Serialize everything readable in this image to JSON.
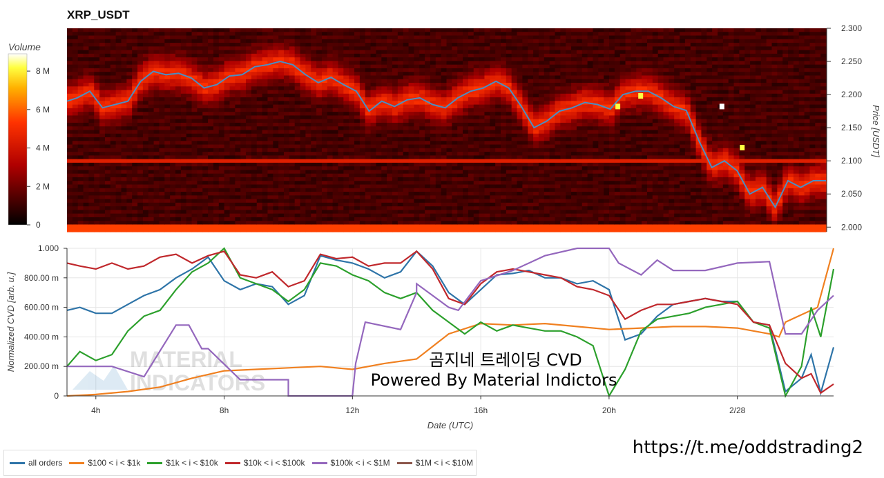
{
  "chart_data": [
    {
      "type": "heatmap",
      "title": "XRP_USDT",
      "ylabel": "Price [USDT]",
      "ylim": [
        1.993,
        2.3
      ],
      "yticks": [
        "2.300",
        "2.250",
        "2.200",
        "2.150",
        "2.100",
        "2.050",
        "2.000"
      ],
      "ytick_values": [
        2.3,
        2.25,
        2.2,
        2.15,
        2.1,
        2.05,
        2.0
      ],
      "colorbar": {
        "title": "Volume",
        "ticks": [
          "8 M",
          "6 M",
          "4 M",
          "2 M",
          "0"
        ],
        "tick_values": [
          8,
          6,
          4,
          2,
          0
        ],
        "range": [
          0,
          8.9
        ]
      },
      "x_range_hours": [
        3.1,
        33
      ],
      "price_series": {
        "name": "price",
        "color": "#4a8ec4",
        "x": [
          3.1,
          3.5,
          4.0,
          4.5,
          5.0,
          5.5,
          6.0,
          6.5,
          7.0,
          7.5,
          8.0,
          8.5,
          9.0,
          9.5,
          10.0,
          10.5,
          11.0,
          11.5,
          12.0,
          12.5,
          13.0,
          13.5,
          14.0,
          14.5,
          15.0,
          15.5,
          16.0,
          16.5,
          17.0,
          17.5,
          18.0,
          18.5,
          19.0,
          19.5,
          20.0,
          20.5,
          21.0,
          21.5,
          22.0,
          22.5,
          23.0,
          23.5,
          24.0,
          24.5,
          25.0,
          25.5,
          26.0,
          26.5,
          27.0,
          27.5,
          28.0,
          28.5,
          29.0,
          29.5,
          30.0,
          30.5,
          31.0,
          31.5,
          32.0,
          32.5,
          33.0
        ],
        "y": [
          2.19,
          2.195,
          2.205,
          2.18,
          2.185,
          2.19,
          2.22,
          2.235,
          2.23,
          2.232,
          2.225,
          2.21,
          2.215,
          2.228,
          2.23,
          2.242,
          2.245,
          2.25,
          2.245,
          2.23,
          2.218,
          2.226,
          2.215,
          2.205,
          2.175,
          2.19,
          2.182,
          2.192,
          2.195,
          2.185,
          2.18,
          2.195,
          2.205,
          2.21,
          2.22,
          2.21,
          2.182,
          2.15,
          2.16,
          2.175,
          2.18,
          2.188,
          2.185,
          2.178,
          2.2,
          2.205,
          2.205,
          2.195,
          2.182,
          2.176,
          2.13,
          2.09,
          2.1,
          2.085,
          2.05,
          2.06,
          2.03,
          2.07,
          2.06,
          2.07,
          2.07
        ]
      },
      "highlights": [
        {
          "x": 24.8,
          "y": 2.182
        },
        {
          "x": 25.7,
          "y": 2.198
        },
        {
          "x": 29.7,
          "y": 2.12
        },
        {
          "x": 28.9,
          "y": 2.182
        }
      ]
    },
    {
      "type": "line",
      "xlabel": "Date (UTC)",
      "ylabel": "Normalized CVD [arb. u.]",
      "ylim": [
        0,
        1
      ],
      "yticks": [
        "1.000",
        "800.00 m",
        "600.00 m",
        "400.00 m",
        "200.00 m",
        "0"
      ],
      "ytick_values": [
        1.0,
        0.8,
        0.6,
        0.4,
        0.2,
        0.0
      ],
      "xticks": [
        "4h",
        "8h",
        "12h",
        "16h",
        "20h",
        "2/28"
      ],
      "xtick_values": [
        4,
        8,
        12,
        16,
        20,
        24
      ],
      "x_range_hours": [
        3.1,
        27
      ],
      "legend_position": "bottom",
      "annotation_lines": [
        "곰지네 트레이딩 CVD",
        "Powered By Material Indictors"
      ],
      "watermark_lines": [
        "MATERIAL",
        "INDICATORS"
      ],
      "series": [
        {
          "name": "all orders",
          "color": "#2e74a8",
          "x": [
            3.1,
            3.5,
            4.0,
            4.5,
            5.0,
            5.5,
            6.0,
            6.5,
            7.0,
            7.5,
            8.0,
            8.5,
            9.0,
            9.5,
            10.0,
            10.5,
            11.0,
            11.5,
            12.0,
            12.5,
            13.0,
            13.5,
            14.0,
            14.5,
            15.0,
            15.5,
            16.0,
            16.5,
            17.0,
            17.5,
            18.0,
            18.5,
            19.0,
            19.5,
            20.0,
            20.5,
            21.0,
            21.5,
            22.0,
            22.5,
            23.0,
            23.5,
            24.0,
            24.5,
            25.0,
            25.5,
            26.0,
            26.3,
            26.6,
            27.0
          ],
          "y": [
            0.58,
            0.6,
            0.56,
            0.56,
            0.62,
            0.68,
            0.72,
            0.8,
            0.86,
            0.94,
            0.78,
            0.72,
            0.76,
            0.74,
            0.62,
            0.68,
            0.95,
            0.92,
            0.9,
            0.86,
            0.8,
            0.84,
            0.98,
            0.88,
            0.7,
            0.62,
            0.72,
            0.82,
            0.83,
            0.85,
            0.8,
            0.8,
            0.76,
            0.78,
            0.72,
            0.38,
            0.42,
            0.54,
            0.62,
            0.64,
            0.66,
            0.64,
            0.64,
            0.5,
            0.48,
            0.03,
            0.12,
            0.28,
            0.02,
            0.33
          ]
        },
        {
          "name": "$100 < i < $1k",
          "color": "#f08020",
          "x": [
            3.1,
            4.0,
            5.0,
            6.0,
            7.0,
            8.0,
            9.0,
            10.0,
            11.0,
            12.0,
            13.0,
            14.0,
            15.0,
            16.0,
            17.0,
            18.0,
            19.0,
            20.0,
            21.0,
            22.0,
            23.0,
            24.0,
            25.0,
            25.3,
            25.5,
            26.0,
            26.5,
            27.0
          ],
          "y": [
            0.0,
            0.01,
            0.03,
            0.06,
            0.12,
            0.17,
            0.18,
            0.19,
            0.2,
            0.18,
            0.22,
            0.25,
            0.42,
            0.49,
            0.48,
            0.49,
            0.47,
            0.45,
            0.46,
            0.47,
            0.47,
            0.46,
            0.42,
            0.4,
            0.5,
            0.55,
            0.6,
            1.0
          ]
        },
        {
          "name": "$1k < i < $10k",
          "color": "#2ca02c",
          "x": [
            3.1,
            3.5,
            4.0,
            4.5,
            5.0,
            5.5,
            6.0,
            6.5,
            7.0,
            7.5,
            8.0,
            8.5,
            9.0,
            9.5,
            10.0,
            10.5,
            11.0,
            11.5,
            12.0,
            12.5,
            13.0,
            13.5,
            14.0,
            14.5,
            15.0,
            15.5,
            16.0,
            16.5,
            17.0,
            17.5,
            18.0,
            18.5,
            19.0,
            19.5,
            20.0,
            20.5,
            21.0,
            21.5,
            22.0,
            22.5,
            23.0,
            23.5,
            24.0,
            24.5,
            25.0,
            25.5,
            26.0,
            26.3,
            26.6,
            27.0
          ],
          "y": [
            0.2,
            0.3,
            0.24,
            0.28,
            0.44,
            0.54,
            0.58,
            0.72,
            0.84,
            0.9,
            1.0,
            0.8,
            0.76,
            0.72,
            0.64,
            0.72,
            0.9,
            0.88,
            0.82,
            0.78,
            0.7,
            0.66,
            0.7,
            0.58,
            0.5,
            0.42,
            0.5,
            0.44,
            0.48,
            0.46,
            0.44,
            0.44,
            0.4,
            0.34,
            0.0,
            0.18,
            0.44,
            0.52,
            0.54,
            0.56,
            0.6,
            0.62,
            0.64,
            0.5,
            0.46,
            0.0,
            0.2,
            0.6,
            0.4,
            0.86
          ]
        },
        {
          "name": "$10k < i < $100k",
          "color": "#c0282c",
          "x": [
            3.1,
            3.5,
            4.0,
            4.5,
            5.0,
            5.5,
            6.0,
            6.5,
            7.0,
            7.5,
            8.0,
            8.5,
            9.0,
            9.5,
            10.0,
            10.5,
            11.0,
            11.5,
            12.0,
            12.5,
            13.0,
            13.5,
            14.0,
            14.5,
            15.0,
            15.5,
            16.0,
            16.5,
            17.0,
            17.5,
            18.0,
            18.5,
            19.0,
            19.5,
            20.0,
            20.5,
            21.0,
            21.5,
            22.0,
            22.5,
            23.0,
            23.5,
            24.0,
            24.5,
            25.0,
            25.5,
            26.0,
            26.3,
            26.6,
            27.0
          ],
          "y": [
            0.9,
            0.88,
            0.86,
            0.9,
            0.86,
            0.88,
            0.94,
            0.96,
            0.9,
            0.95,
            0.98,
            0.82,
            0.8,
            0.84,
            0.74,
            0.78,
            0.96,
            0.93,
            0.94,
            0.88,
            0.9,
            0.9,
            0.98,
            0.86,
            0.66,
            0.62,
            0.76,
            0.84,
            0.86,
            0.84,
            0.82,
            0.8,
            0.74,
            0.72,
            0.68,
            0.52,
            0.58,
            0.62,
            0.62,
            0.64,
            0.66,
            0.64,
            0.62,
            0.5,
            0.48,
            0.22,
            0.12,
            0.15,
            0.02,
            0.08
          ]
        },
        {
          "name": "$100k < i < $1M",
          "color": "#9467bd",
          "x": [
            3.1,
            4.5,
            5.5,
            6.5,
            6.9,
            7.3,
            7.5,
            8.5,
            9.0,
            10.0,
            10.0,
            11.0,
            12.0,
            12.1,
            12.4,
            13.5,
            14.0,
            14.0,
            15.0,
            15.3,
            16.0,
            17.0,
            18.0,
            19.0,
            20.0,
            20.3,
            21.0,
            21.5,
            22.0,
            23.0,
            24.0,
            25.0,
            25.5,
            26.0,
            26.5,
            27.0
          ],
          "y": [
            0.2,
            0.2,
            0.13,
            0.48,
            0.48,
            0.32,
            0.32,
            0.11,
            0.11,
            0.11,
            0.0,
            0.0,
            0.0,
            0.22,
            0.5,
            0.45,
            0.7,
            0.76,
            0.6,
            0.58,
            0.78,
            0.85,
            0.95,
            1.0,
            1.0,
            0.9,
            0.82,
            0.92,
            0.85,
            0.85,
            0.9,
            0.91,
            0.42,
            0.42,
            0.58,
            0.68
          ]
        },
        {
          "name": "$1M < i < $10M",
          "color": "#8c564b",
          "x": [],
          "y": []
        }
      ]
    }
  ],
  "url": "https://t.me/oddstrading2"
}
